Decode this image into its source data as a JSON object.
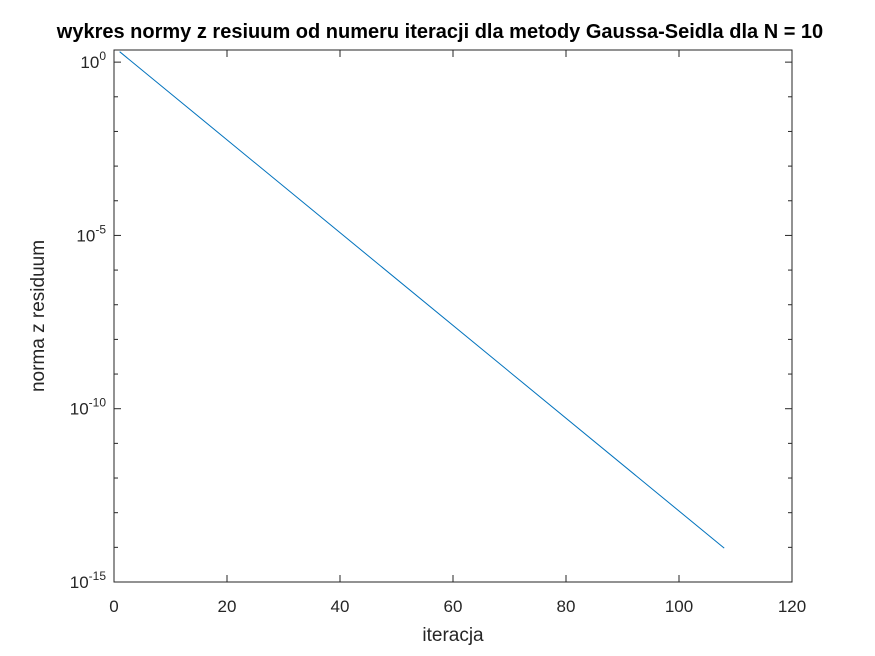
{
  "chart_data": {
    "type": "line",
    "title": "wykres normy z resiuum od numeru iteracji dla metody Gaussa-Seidla dla N = 10",
    "xlabel": "iteracja",
    "ylabel": "norma z residuum",
    "xlim": [
      0,
      120
    ],
    "ylim_log10": [
      -15,
      0.35
    ],
    "yscale": "log",
    "grid": false,
    "x_ticks": [
      "0",
      "20",
      "40",
      "60",
      "80",
      "100",
      "120"
    ],
    "x_tick_values": [
      0,
      20,
      40,
      60,
      80,
      100,
      120
    ],
    "y_ticks": [
      {
        "base": "10",
        "exp": "0",
        "value_log10": 0
      },
      {
        "base": "10",
        "exp": "-5",
        "value_log10": -5
      },
      {
        "base": "10",
        "exp": "-10",
        "value_log10": -10
      },
      {
        "base": "10",
        "exp": "-15",
        "value_log10": -15
      }
    ],
    "series": [
      {
        "color": "#0072BD",
        "points": [
          {
            "x": 1,
            "y": 2.0
          },
          {
            "x": 108,
            "y": 9.5e-15
          }
        ]
      }
    ]
  }
}
